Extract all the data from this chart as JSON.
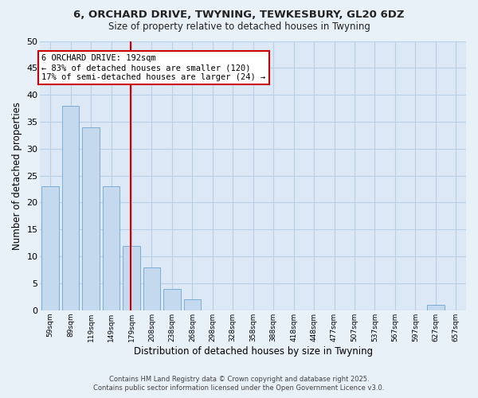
{
  "title1": "6, ORCHARD DRIVE, TWYNING, TEWKESBURY, GL20 6DZ",
  "title2": "Size of property relative to detached houses in Twyning",
  "xlabel": "Distribution of detached houses by size in Twyning",
  "ylabel": "Number of detached properties",
  "bar_color": "#c5d9ee",
  "bar_edge_color": "#7aadd4",
  "bg_color": "#dce8f5",
  "grid_color": "#b8cfe8",
  "fig_bg_color": "#e8f0f8",
  "categories": [
    "59sqm",
    "89sqm",
    "119sqm",
    "149sqm",
    "179sqm",
    "208sqm",
    "238sqm",
    "268sqm",
    "298sqm",
    "328sqm",
    "358sqm",
    "388sqm",
    "418sqm",
    "448sqm",
    "477sqm",
    "507sqm",
    "537sqm",
    "567sqm",
    "597sqm",
    "627sqm",
    "657sqm"
  ],
  "values": [
    23,
    38,
    34,
    23,
    12,
    8,
    4,
    2,
    0,
    0,
    0,
    0,
    0,
    0,
    0,
    0,
    0,
    0,
    0,
    1,
    0
  ],
  "ylim": [
    0,
    50
  ],
  "yticks": [
    0,
    5,
    10,
    15,
    20,
    25,
    30,
    35,
    40,
    45,
    50
  ],
  "vline_color": "#cc0000",
  "annotation_title": "6 ORCHARD DRIVE: 192sqm",
  "annotation_line1": "← 83% of detached houses are smaller (120)",
  "annotation_line2": "17% of semi-detached houses are larger (24) →",
  "annotation_box_color": "#ffffff",
  "annotation_box_edge": "#cc0000",
  "footnote1": "Contains HM Land Registry data © Crown copyright and database right 2025.",
  "footnote2": "Contains public sector information licensed under the Open Government Licence v3.0."
}
